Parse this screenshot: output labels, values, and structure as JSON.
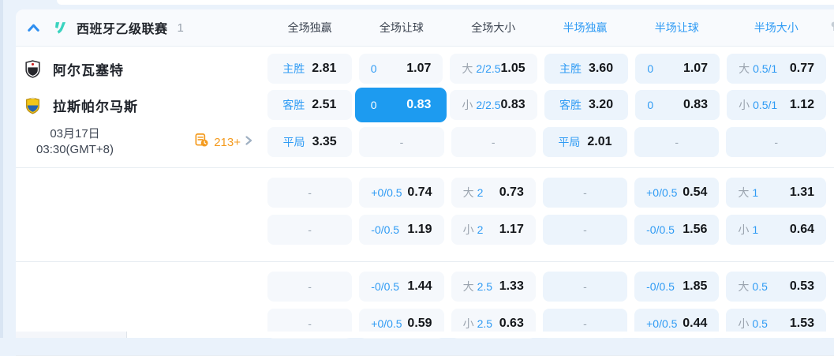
{
  "colors": {
    "accent_blue": "#2f9bf4",
    "highlight_blue": "#1d9bf0",
    "orange": "#f49b1f",
    "league_logo_teal": "#3ad3bf"
  },
  "header": {
    "league": "西班牙乙级联赛",
    "count": "1",
    "columns": [
      {
        "label": "全场独赢",
        "half": false
      },
      {
        "label": "全场让球",
        "half": false
      },
      {
        "label": "全场大小",
        "half": false
      },
      {
        "label": "半场独赢",
        "half": true
      },
      {
        "label": "半场让球",
        "half": true
      },
      {
        "label": "半场大小",
        "half": true
      }
    ]
  },
  "match": {
    "home": "阿尔瓦塞特",
    "away": "拉斯帕尔马斯",
    "date_line1": "03月17日",
    "date_line2": "03:30(GMT+8)",
    "more_markets": "213+"
  },
  "odds_groups": [
    {
      "rows": [
        {
          "left": "home",
          "cells": [
            {
              "label": "主胜",
              "value": "2.81",
              "style": "win"
            },
            {
              "label": "0",
              "value": "1.07",
              "style": "spread"
            },
            {
              "gray": "大",
              "label": "2/2.5",
              "value": "1.05",
              "style": "total"
            },
            {
              "label": "主胜",
              "value": "3.60",
              "style": "win",
              "half": true
            },
            {
              "label": "0",
              "value": "1.07",
              "style": "spread",
              "half": true
            },
            {
              "gray": "大",
              "label": "0.5/1",
              "value": "0.77",
              "style": "total",
              "half": true
            }
          ]
        },
        {
          "left": "away",
          "cells": [
            {
              "label": "客胜",
              "value": "2.51",
              "style": "win"
            },
            {
              "label": "0",
              "value": "0.83",
              "style": "spread",
              "highlight": true
            },
            {
              "gray": "小",
              "label": "2/2.5",
              "value": "0.83",
              "style": "total"
            },
            {
              "label": "客胜",
              "value": "3.20",
              "style": "win",
              "half": true
            },
            {
              "label": "0",
              "value": "0.83",
              "style": "spread",
              "half": true
            },
            {
              "gray": "小",
              "label": "0.5/1",
              "value": "1.12",
              "style": "total",
              "half": true
            }
          ]
        },
        {
          "left": "meta",
          "cells": [
            {
              "label": "平局",
              "value": "3.35",
              "style": "win"
            },
            {
              "dash": true
            },
            {
              "dash": true
            },
            {
              "label": "平局",
              "value": "2.01",
              "style": "win",
              "half": true
            },
            {
              "dash": true,
              "half": true
            },
            {
              "dash": true,
              "half": true
            }
          ]
        }
      ]
    },
    {
      "rows": [
        {
          "left": "empty",
          "cells": [
            {
              "dash": true
            },
            {
              "label": "+0/0.5",
              "value": "0.74",
              "style": "spread"
            },
            {
              "gray": "大",
              "label": "2",
              "value": "0.73",
              "style": "total"
            },
            {
              "dash": true,
              "half": true
            },
            {
              "label": "+0/0.5",
              "value": "0.54",
              "style": "spread",
              "half": true
            },
            {
              "gray": "大",
              "label": "1",
              "value": "1.31",
              "style": "total",
              "half": true
            }
          ]
        },
        {
          "left": "empty",
          "cells": [
            {
              "dash": true
            },
            {
              "label": "-0/0.5",
              "value": "1.19",
              "style": "spread"
            },
            {
              "gray": "小",
              "label": "2",
              "value": "1.17",
              "style": "total"
            },
            {
              "dash": true,
              "half": true
            },
            {
              "label": "-0/0.5",
              "value": "1.56",
              "style": "spread",
              "half": true
            },
            {
              "gray": "小",
              "label": "1",
              "value": "0.64",
              "style": "total",
              "half": true
            }
          ]
        }
      ]
    },
    {
      "rows": [
        {
          "left": "empty",
          "cells": [
            {
              "dash": true
            },
            {
              "label": "-0/0.5",
              "value": "1.44",
              "style": "spread"
            },
            {
              "gray": "大",
              "label": "2.5",
              "value": "1.33",
              "style": "total"
            },
            {
              "dash": true,
              "half": true
            },
            {
              "label": "-0/0.5",
              "value": "1.85",
              "style": "spread",
              "half": true
            },
            {
              "gray": "大",
              "label": "0.5",
              "value": "0.53",
              "style": "total",
              "half": true
            }
          ]
        },
        {
          "left": "empty",
          "cells": [
            {
              "dash": true
            },
            {
              "label": "+0/0.5",
              "value": "0.59",
              "style": "spread"
            },
            {
              "gray": "小",
              "label": "2.5",
              "value": "0.63",
              "style": "total"
            },
            {
              "dash": true,
              "half": true
            },
            {
              "label": "+0/0.5",
              "value": "0.44",
              "style": "spread",
              "half": true
            },
            {
              "gray": "小",
              "label": "0.5",
              "value": "1.53",
              "style": "total",
              "half": true
            }
          ]
        }
      ]
    }
  ],
  "dash_char": "-",
  "icons": {
    "collapse": "chevron-up",
    "league_logo": "laliga2-mark",
    "markets": "odds-list-clock",
    "more": "chevron-right",
    "corner": "pin"
  }
}
